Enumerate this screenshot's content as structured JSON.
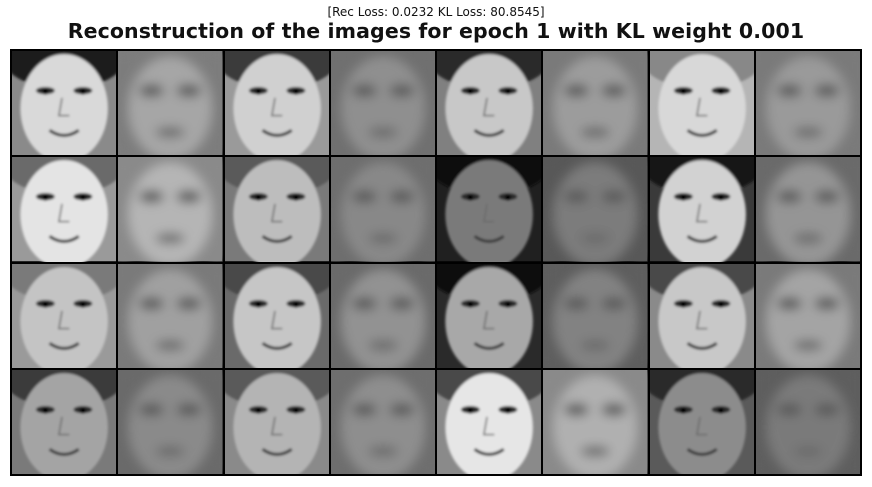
{
  "figure": {
    "subtitle": "[Rec Loss: 0.0232 KL Loss: 80.8545]",
    "title": "Reconstruction of the images for epoch 1 with KL weight 0.001"
  },
  "grid": {
    "rows": 4,
    "cols": 8,
    "cells": [
      {
        "kind": "original",
        "shade": "#8a8a8a",
        "face": "#d9d9d9",
        "hair": "#1a1a1a"
      },
      {
        "kind": "reconstruction",
        "shade": "#7d7d7d",
        "face": "#a6a6a6"
      },
      {
        "kind": "original",
        "shade": "#9a9a9a",
        "face": "#d0d0d0",
        "hair": "#3a3a3a"
      },
      {
        "kind": "reconstruction",
        "shade": "#707070",
        "face": "#8f8f8f"
      },
      {
        "kind": "original",
        "shade": "#808080",
        "face": "#c8c8c8",
        "hair": "#2a2a2a"
      },
      {
        "kind": "reconstruction",
        "shade": "#7a7a7a",
        "face": "#9c9c9c"
      },
      {
        "kind": "original",
        "shade": "#b5b5b5",
        "face": "#d8d8d8",
        "hair": "#888888"
      },
      {
        "kind": "reconstruction",
        "shade": "#7a7a7a",
        "face": "#9a9a9a"
      },
      {
        "kind": "original",
        "shade": "#9a9a9a",
        "face": "#e4e4e4",
        "hair": "#6a6a6a"
      },
      {
        "kind": "reconstruction",
        "shade": "#8a8a8a",
        "face": "#b5b5b5"
      },
      {
        "kind": "original",
        "shade": "#7a7a7a",
        "face": "#bdbdbd",
        "hair": "#5a5a5a"
      },
      {
        "kind": "reconstruction",
        "shade": "#6e6e6e",
        "face": "#888888"
      },
      {
        "kind": "original",
        "shade": "#202020",
        "face": "#7a7a7a",
        "hair": "#0a0a0a"
      },
      {
        "kind": "reconstruction",
        "shade": "#585858",
        "face": "#7c7c7c"
      },
      {
        "kind": "original",
        "shade": "#3a3a3a",
        "face": "#d2d2d2",
        "hair": "#151515"
      },
      {
        "kind": "reconstruction",
        "shade": "#6a6a6a",
        "face": "#959595"
      },
      {
        "kind": "original",
        "shade": "#9a9a9a",
        "face": "#c4c4c4",
        "hair": "#7a7a7a"
      },
      {
        "kind": "reconstruction",
        "shade": "#7a7a7a",
        "face": "#a0a0a0"
      },
      {
        "kind": "original",
        "shade": "#6a6a6a",
        "face": "#c6c6c6",
        "hair": "#4a4a4a"
      },
      {
        "kind": "reconstruction",
        "shade": "#6a6a6a",
        "face": "#929292"
      },
      {
        "kind": "original",
        "shade": "#2a2a2a",
        "face": "#a8a8a8",
        "hair": "#101010"
      },
      {
        "kind": "reconstruction",
        "shade": "#5e5e5e",
        "face": "#828282"
      },
      {
        "kind": "original",
        "shade": "#8a8a8a",
        "face": "#c8c8c8",
        "hair": "#4a4a4a"
      },
      {
        "kind": "reconstruction",
        "shade": "#7a7a7a",
        "face": "#a4a4a4"
      },
      {
        "kind": "original",
        "shade": "#7a7a7a",
        "face": "#a4a4a4",
        "hair": "#3a3a3a"
      },
      {
        "kind": "reconstruction",
        "shade": "#6a6a6a",
        "face": "#8a8a8a"
      },
      {
        "kind": "original",
        "shade": "#8a8a8a",
        "face": "#b4b4b4",
        "hair": "#5a5a5a"
      },
      {
        "kind": "reconstruction",
        "shade": "#6e6e6e",
        "face": "#8e8e8e"
      },
      {
        "kind": "original",
        "shade": "#8a8a8a",
        "face": "#e6e6e6",
        "hair": "#4a4a4a"
      },
      {
        "kind": "reconstruction",
        "shade": "#8a8a8a",
        "face": "#b0b0b0"
      },
      {
        "kind": "original",
        "shade": "#5a5a5a",
        "face": "#8c8c8c",
        "hair": "#2a2a2a"
      },
      {
        "kind": "reconstruction",
        "shade": "#5e5e5e",
        "face": "#7a7a7a"
      }
    ]
  }
}
